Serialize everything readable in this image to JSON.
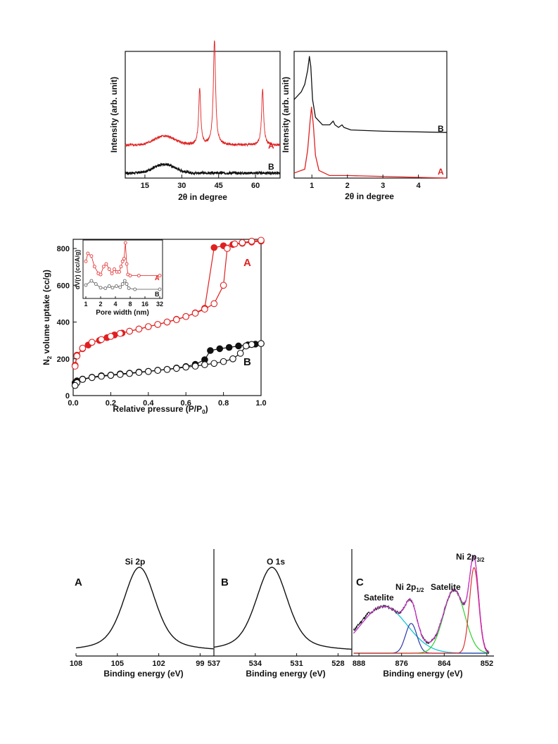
{
  "chart_data": [
    {
      "id": "xrd-wide",
      "type": "line",
      "xlabel": "2θ in degree",
      "ylabel": "Intensity (arb. unit)",
      "xlim": [
        7,
        70
      ],
      "xticks": [
        "15",
        "30",
        "45",
        "60"
      ],
      "xtick_values": [
        15,
        30,
        45,
        60
      ],
      "series": [
        {
          "name": "A",
          "color": "#e02020",
          "baseline": 0.26,
          "hump": {
            "center": 23,
            "width": 6,
            "height": 0.07
          },
          "peaks": [
            {
              "x": 37.3,
              "h": 0.44,
              "w": 0.5
            },
            {
              "x": 43.3,
              "h": 0.83,
              "w": 0.55
            },
            {
              "x": 62.9,
              "h": 0.44,
              "w": 0.5
            }
          ]
        },
        {
          "name": "B",
          "color": "#111111",
          "baseline": 0.04,
          "hump": {
            "center": 23,
            "width": 6,
            "height": 0.07
          },
          "peaks": []
        }
      ]
    },
    {
      "id": "xrd-low",
      "type": "line",
      "xlabel": "2θ  in degree",
      "ylabel": "Intensity (arb. unit)",
      "xlim": [
        0.5,
        4.8
      ],
      "xticks": [
        "1",
        "2",
        "3",
        "4"
      ],
      "xtick_values": [
        1,
        2,
        3,
        4
      ],
      "series": [
        {
          "name": "B",
          "color": "#111111",
          "points": [
            [
              0.5,
              0.62
            ],
            [
              0.7,
              0.68
            ],
            [
              0.8,
              0.74
            ],
            [
              0.88,
              0.85
            ],
            [
              0.93,
              0.96
            ],
            [
              0.97,
              0.88
            ],
            [
              1.02,
              0.62
            ],
            [
              1.1,
              0.48
            ],
            [
              1.3,
              0.42
            ],
            [
              1.5,
              0.42
            ],
            [
              1.6,
              0.45
            ],
            [
              1.65,
              0.42
            ],
            [
              1.75,
              0.4
            ],
            [
              1.85,
              0.42
            ],
            [
              1.9,
              0.4
            ],
            [
              2.1,
              0.38
            ],
            [
              3,
              0.37
            ],
            [
              4.8,
              0.36
            ]
          ]
        },
        {
          "name": "A",
          "color": "#e02020",
          "points": [
            [
              0.5,
              0.04
            ],
            [
              0.8,
              0.07
            ],
            [
              0.88,
              0.22
            ],
            [
              0.95,
              0.45
            ],
            [
              0.99,
              0.56
            ],
            [
              1.04,
              0.42
            ],
            [
              1.1,
              0.18
            ],
            [
              1.2,
              0.06
            ],
            [
              1.5,
              0.02
            ],
            [
              2,
              0.02
            ],
            [
              4.8,
              0.0
            ]
          ]
        }
      ]
    },
    {
      "id": "bet",
      "type": "scatter",
      "xlabel": "Relative pressure (P/P",
      "xlabel_sub": "0",
      "xlabel_end": ")",
      "ylabel_pre": "N",
      "ylabel_sub": "2",
      "ylabel_post": " volume uptake (cc/g)",
      "xlim": [
        0,
        1.0
      ],
      "ylim": [
        0,
        850
      ],
      "xticks": [
        "0.0",
        "0.2",
        "0.4",
        "0.6",
        "0.8",
        "1.0"
      ],
      "xtick_values": [
        0,
        0.2,
        0.4,
        0.6,
        0.8,
        1.0
      ],
      "yticks": [
        "0",
        "200",
        "400",
        "600",
        "800"
      ],
      "ytick_values": [
        0,
        200,
        400,
        600,
        800
      ],
      "series": [
        {
          "name": "A",
          "color": "#e02020",
          "adsorption": [
            [
              0.01,
              165
            ],
            [
              0.02,
              220
            ],
            [
              0.05,
              255
            ],
            [
              0.08,
              275
            ],
            [
              0.1,
              290
            ],
            [
              0.14,
              300
            ],
            [
              0.18,
              315
            ],
            [
              0.22,
              330
            ],
            [
              0.26,
              340
            ],
            [
              0.3,
              350
            ],
            [
              0.35,
              362
            ],
            [
              0.4,
              375
            ],
            [
              0.45,
              387
            ],
            [
              0.5,
              400
            ],
            [
              0.55,
              415
            ],
            [
              0.6,
              430
            ],
            [
              0.65,
              450
            ],
            [
              0.7,
              475
            ],
            [
              0.75,
              805
            ],
            [
              0.8,
              815
            ],
            [
              0.85,
              822
            ],
            [
              0.9,
              828
            ],
            [
              0.95,
              835
            ],
            [
              1.0,
              840
            ]
          ],
          "desorption": [
            [
              1.0,
              845
            ],
            [
              0.95,
              840
            ],
            [
              0.9,
              832
            ],
            [
              0.86,
              825
            ],
            [
              0.82,
              800
            ],
            [
              0.8,
              600
            ],
            [
              0.75,
              500
            ],
            [
              0.7,
              470
            ],
            [
              0.65,
              448
            ],
            [
              0.6,
              430
            ],
            [
              0.55,
              413
            ],
            [
              0.5,
              400
            ],
            [
              0.45,
              387
            ],
            [
              0.4,
              375
            ],
            [
              0.35,
              362
            ],
            [
              0.3,
              350
            ],
            [
              0.25,
              338
            ],
            [
              0.2,
              322
            ],
            [
              0.15,
              305
            ],
            [
              0.1,
              290
            ],
            [
              0.05,
              258
            ],
            [
              0.02,
              215
            ],
            [
              0.01,
              160
            ]
          ]
        },
        {
          "name": "B",
          "color": "#111111",
          "adsorption": [
            [
              0.01,
              70
            ],
            [
              0.02,
              80
            ],
            [
              0.05,
              90
            ],
            [
              0.1,
              100
            ],
            [
              0.15,
              108
            ],
            [
              0.2,
              112
            ],
            [
              0.25,
              118
            ],
            [
              0.3,
              122
            ],
            [
              0.35,
              128
            ],
            [
              0.4,
              132
            ],
            [
              0.45,
              138
            ],
            [
              0.5,
              143
            ],
            [
              0.55,
              150
            ],
            [
              0.6,
              158
            ],
            [
              0.65,
              170
            ],
            [
              0.7,
              195
            ],
            [
              0.73,
              245
            ],
            [
              0.78,
              255
            ],
            [
              0.83,
              262
            ],
            [
              0.88,
              270
            ],
            [
              0.93,
              276
            ],
            [
              0.97,
              280
            ],
            [
              1.0,
              283
            ]
          ],
          "desorption": [
            [
              1.0,
              283
            ],
            [
              0.95,
              278
            ],
            [
              0.92,
              270
            ],
            [
              0.89,
              230
            ],
            [
              0.85,
              200
            ],
            [
              0.8,
              185
            ],
            [
              0.75,
              175
            ],
            [
              0.7,
              168
            ],
            [
              0.65,
              160
            ],
            [
              0.6,
              155
            ],
            [
              0.55,
              148
            ],
            [
              0.5,
              142
            ],
            [
              0.45,
              137
            ],
            [
              0.4,
              131
            ],
            [
              0.35,
              126
            ],
            [
              0.3,
              120
            ],
            [
              0.25,
              115
            ],
            [
              0.2,
              110
            ],
            [
              0.15,
              105
            ],
            [
              0.1,
              98
            ],
            [
              0.05,
              88
            ],
            [
              0.02,
              70
            ],
            [
              0.01,
              55
            ]
          ]
        }
      ],
      "inset": {
        "xlabel": "Pore width (nm)",
        "ylabel": "dV(r) (cc/A/g)",
        "xticks": [
          "1",
          "2",
          "4",
          "8",
          "16",
          "32"
        ],
        "series": [
          {
            "name": "A",
            "color": "#e02020",
            "points": [
              [
                1,
                0.65
              ],
              [
                1.1,
                0.8
              ],
              [
                1.3,
                0.75
              ],
              [
                1.5,
                0.55
              ],
              [
                1.8,
                0.42
              ],
              [
                2,
                0.4
              ],
              [
                2.3,
                0.55
              ],
              [
                2.6,
                0.6
              ],
              [
                3,
                0.5
              ],
              [
                3.4,
                0.42
              ],
              [
                3.8,
                0.5
              ],
              [
                4.3,
                0.45
              ],
              [
                4.8,
                0.45
              ],
              [
                5.2,
                0.55
              ],
              [
                5.6,
                0.65
              ],
              [
                6,
                0.7
              ],
              [
                6.4,
                1.0
              ],
              [
                6.8,
                0.6
              ],
              [
                7.2,
                0.4
              ],
              [
                8,
                0.38
              ],
              [
                12,
                0.38
              ],
              [
                32,
                0.38
              ]
            ]
          },
          {
            "name": "B",
            "color": "#555555",
            "points": [
              [
                1,
                0.2
              ],
              [
                1.3,
                0.28
              ],
              [
                1.6,
                0.22
              ],
              [
                2,
                0.15
              ],
              [
                2.5,
                0.14
              ],
              [
                3,
                0.18
              ],
              [
                3.5,
                0.15
              ],
              [
                4.2,
                0.18
              ],
              [
                5,
                0.16
              ],
              [
                5.6,
                0.22
              ],
              [
                6.2,
                0.28
              ],
              [
                6.8,
                0.22
              ],
              [
                7.5,
                0.14
              ],
              [
                10,
                0.12
              ],
              [
                32,
                0.12
              ]
            ]
          }
        ]
      }
    },
    {
      "id": "xps-si",
      "type": "line",
      "panel_letter": "A",
      "annotation": "Si 2p",
      "xlabel": "Binding energy (eV)",
      "xlim": [
        108,
        98
      ],
      "xticks": [
        "108",
        "105",
        "102",
        "99"
      ],
      "xtick_values": [
        108,
        105,
        102,
        99
      ],
      "series": [
        {
          "name": "",
          "color": "#111111",
          "peak": {
            "center": 103.4,
            "width": 1.1,
            "height": 1.0
          }
        }
      ]
    },
    {
      "id": "xps-o",
      "type": "line",
      "panel_letter": "B",
      "annotation": "O 1s",
      "xlabel": "Binding energy (eV)",
      "xlim": [
        537,
        527
      ],
      "xticks": [
        "537",
        "534",
        "531",
        "528"
      ],
      "xtick_values": [
        537,
        534,
        531,
        528
      ],
      "series": [
        {
          "name": "",
          "color": "#111111",
          "peak": {
            "center": 532.8,
            "width": 1.1,
            "height": 1.0
          }
        }
      ]
    },
    {
      "id": "xps-ni",
      "type": "line",
      "panel_letter": "C",
      "labels": {
        "satellite_left": "Satelite",
        "ni_half_pre": "Ni 2p",
        "ni_half_sub": "1/2",
        "satellite_right": "Satelite",
        "ni_three_half_pre": "Ni 2p",
        "ni_three_half_sub": "3/2"
      },
      "xlabel": "Binding energy (eV)",
      "xlim": [
        890,
        850
      ],
      "xticks": [
        "888",
        "876",
        "864",
        "852"
      ],
      "xtick_values": [
        888,
        876,
        864,
        852
      ],
      "components": [
        {
          "name": "",
          "color": "#00c0d0",
          "center": 881,
          "width": 6.5,
          "height": 0.52
        },
        {
          "name": "",
          "color": "#2b3aa8",
          "center": 873.3,
          "width": 1.6,
          "height": 0.33
        },
        {
          "name": "",
          "color": "#30d030",
          "center": 861.2,
          "width": 3.0,
          "height": 0.7
        },
        {
          "name": "",
          "color": "#e03030",
          "center": 855.6,
          "width": 1.3,
          "height": 0.95
        }
      ],
      "envelope_color": "#cc33cc",
      "raw_color": "#111111"
    }
  ]
}
